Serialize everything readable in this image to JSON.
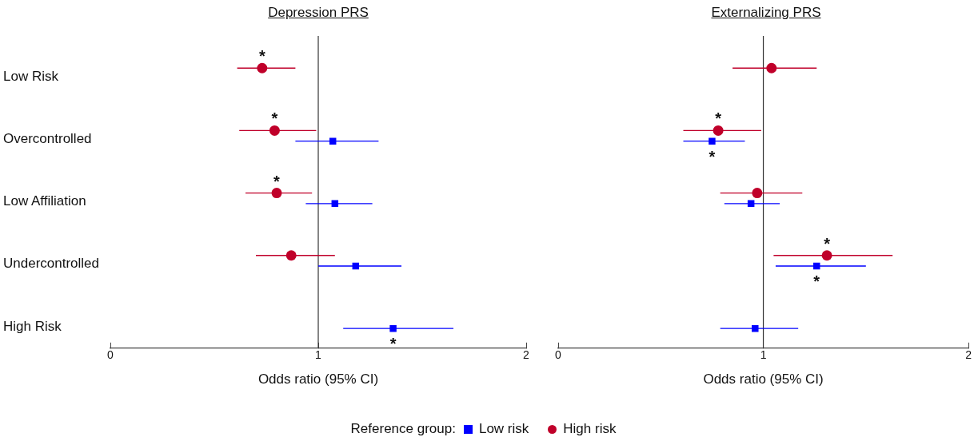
{
  "chart_data": [
    {
      "type": "scatter",
      "title": "Depression PRS",
      "xlabel": "Odds ratio (95% CI)",
      "orientation": "horizontal",
      "legend": "bottom",
      "legend_title": "Reference group:",
      "categories": [
        "Low Risk",
        "Overcontrolled",
        "Low Affiliation",
        "Undercontrolled",
        "High Risk"
      ],
      "xlim": [
        0,
        2
      ],
      "xticks": [
        0,
        1,
        2
      ],
      "grid": false,
      "ref_lines": [
        {
          "axis": "x",
          "value": 1,
          "color": "#333333"
        }
      ],
      "series": [
        {
          "name": "Low risk",
          "color": "#0000ff",
          "marker": "square",
          "values": [
            null,
            1.07,
            1.08,
            1.18,
            1.36
          ],
          "errors": [
            null,
            [
              0.89,
              1.29
            ],
            [
              0.94,
              1.26
            ],
            [
              1.0,
              1.4
            ],
            [
              1.12,
              1.65
            ]
          ]
        },
        {
          "name": "High risk",
          "color": "#c0002a",
          "marker": "circle",
          "values": [
            0.73,
            0.79,
            0.8,
            0.87,
            null
          ],
          "errors": [
            [
              0.61,
              0.89
            ],
            [
              0.62,
              0.99
            ],
            [
              0.65,
              0.97
            ],
            [
              0.7,
              1.08
            ],
            null
          ]
        }
      ],
      "annotations": [
        {
          "text": "*",
          "x": 0.73,
          "y": "Low Risk"
        },
        {
          "text": "*",
          "x": 0.79,
          "y": "Overcontrolled"
        },
        {
          "text": "*",
          "x": 0.8,
          "y": "Low Affiliation"
        },
        {
          "text": "*",
          "x": 1.36,
          "y": "High Risk"
        }
      ]
    },
    {
      "type": "scatter",
      "title": "Externalizing PRS",
      "xlabel": "Odds ratio (95% CI)",
      "orientation": "horizontal",
      "tick_labels": "x",
      "legend": "bottom",
      "categories": [
        "Low Risk",
        "Overcontrolled",
        "Low Affiliation",
        "Undercontrolled",
        "High Risk"
      ],
      "xlim": [
        0,
        2
      ],
      "xticks": [
        0,
        1,
        2
      ],
      "grid": false,
      "ref_lines": [
        {
          "axis": "x",
          "value": 1,
          "color": "#333333"
        }
      ],
      "series": [
        {
          "name": "Low risk",
          "color": "#0000ff",
          "marker": "square",
          "values": [
            null,
            0.75,
            0.94,
            1.26,
            0.96
          ],
          "errors": [
            null,
            [
              0.61,
              0.91
            ],
            [
              0.81,
              1.08
            ],
            [
              1.06,
              1.5
            ],
            [
              0.79,
              1.17
            ]
          ]
        },
        {
          "name": "High risk",
          "color": "#c0002a",
          "marker": "circle",
          "values": [
            1.04,
            0.78,
            0.97,
            1.31,
            null
          ],
          "errors": [
            [
              0.85,
              1.26
            ],
            [
              0.61,
              0.99
            ],
            [
              0.79,
              1.19
            ],
            [
              1.05,
              1.63
            ],
            null
          ]
        }
      ],
      "annotations": [
        {
          "text": "*",
          "x": 0.78,
          "y": "Overcontrolled"
        },
        {
          "text": "*",
          "x": 0.75,
          "y": "Overcontrolled"
        },
        {
          "text": "*",
          "x": 1.31,
          "y": "Undercontrolled"
        },
        {
          "text": "*",
          "x": 1.26,
          "y": "Undercontrolled"
        }
      ]
    }
  ]
}
